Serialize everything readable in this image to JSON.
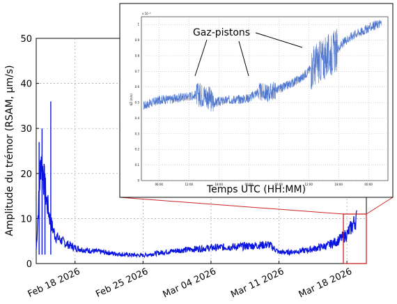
{
  "chart_data": [
    {
      "type": "line",
      "xlabel": "",
      "ylabel": "Amplitude du trémor (RSAM, μm/s)",
      "ylim": [
        0,
        50
      ],
      "yticks": [
        "0",
        "10",
        "20",
        "30",
        "40",
        "50"
      ],
      "x_axis_type": "date",
      "xlim": [
        "2026-02-14",
        "2026-03-20"
      ],
      "xticks": [
        "Feb 18 2026",
        "Feb 25 2026",
        "Mar 04 2026",
        "Mar 11 2026",
        "Mar 18 2026"
      ],
      "grid": true,
      "series_color": "#0a14e0",
      "series": [
        {
          "x": [
            "2026-02-14",
            "2026-02-14.5",
            "2026-02-15",
            "2026-02-15.5",
            "2026-02-16",
            "2026-02-17",
            "2026-02-18",
            "2026-02-19",
            "2026-02-21",
            "2026-02-23",
            "2026-02-25",
            "2026-02-27",
            "2026-03-01",
            "2026-03-04",
            "2026-03-07",
            "2026-03-10",
            "2026-03-11",
            "2026-03-12",
            "2026-03-14",
            "2026-03-16",
            "2026-03-17",
            "2026-03-18",
            "2026-03-19"
          ],
          "y": [
            3,
            24,
            15,
            9,
            6,
            4.5,
            3.5,
            3,
            2.5,
            2,
            1.8,
            2.5,
            3,
            3.5,
            3.8,
            4.2,
            2.5,
            2.5,
            3,
            4,
            5,
            6.5,
            10
          ]
        }
      ],
      "spikes": [
        {
          "x": "2026-02-14.3",
          "y": 27
        },
        {
          "x": "2026-02-14.6",
          "y": 30
        },
        {
          "x": "2026-02-15.5",
          "y": 36
        },
        {
          "x": "2026-02-14.9",
          "y": 20
        }
      ],
      "highlight": {
        "label": "",
        "x": [
          "2026-03-18",
          "2026-03-19"
        ],
        "y": [
          0,
          10.5
        ],
        "color": "#cc2222"
      }
    },
    {
      "type": "line",
      "title": "",
      "xlabel": "Temps  UTC (HH:MM)",
      "ylabel": "UZ (m/s)",
      "y_scale_label": "x 10⁻⁵",
      "ylim": [
        0,
        1.05
      ],
      "yticks": [
        "0",
        "0.1",
        "0.2",
        "0.3",
        "0.4",
        "0.5",
        "0.6",
        "0.7",
        "0.8",
        "0.9",
        "1"
      ],
      "xticks": [
        "06:00",
        "12:00",
        "18:00",
        "00:00",
        "06:00",
        "12:00",
        "18:00",
        "00:00"
      ],
      "grid": true,
      "series_color": "#3d67c7",
      "series": [
        {
          "x": [
            0,
            2,
            4,
            6,
            8,
            10,
            12,
            14,
            16,
            18,
            20,
            22,
            24,
            26,
            28,
            30,
            32,
            34,
            36,
            38,
            40,
            42,
            44,
            46,
            48,
            50,
            52,
            54
          ],
          "y": [
            0.48,
            0.5,
            0.52,
            0.52,
            0.53,
            0.54,
            0.55,
            0.55,
            0.5,
            0.51,
            0.52,
            0.52,
            0.53,
            0.57,
            0.56,
            0.58,
            0.6,
            0.63,
            0.66,
            0.72,
            0.76,
            0.8,
            0.84,
            0.9,
            0.94,
            0.96,
            0.99,
            1.01
          ]
        }
      ],
      "annotation": "Gaz-pistons"
    }
  ]
}
